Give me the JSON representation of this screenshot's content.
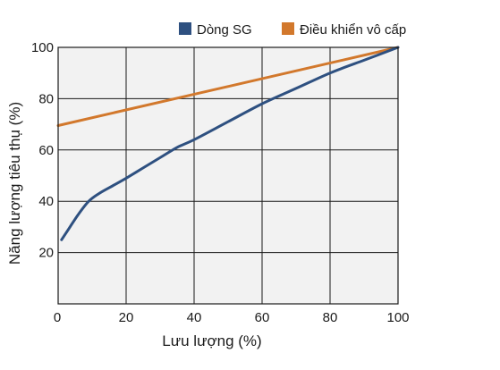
{
  "chart_data": {
    "type": "line",
    "xlabel": "Lưu lượng (%)",
    "ylabel": "Năng lượng tiêu thụ (%)",
    "xlim": [
      0,
      100
    ],
    "ylim": [
      0,
      100
    ],
    "x_ticks": [
      0,
      20,
      40,
      60,
      80,
      100
    ],
    "y_ticks": [
      20,
      40,
      60,
      80,
      100
    ],
    "grid": true,
    "legend_position": "top-right",
    "series": [
      {
        "name": "Dòng SG",
        "color": "#2e5080",
        "x": [
          1,
          3,
          6,
          9,
          12,
          16,
          20,
          25,
          30,
          35,
          40,
          50,
          60,
          70,
          80,
          90,
          100
        ],
        "y": [
          25,
          29,
          35,
          40,
          43,
          46,
          49,
          53,
          57,
          61,
          64,
          71,
          78,
          84,
          90,
          95,
          100
        ]
      },
      {
        "name": "Điều khiển vô cấp",
        "color": "#d2782c",
        "x": [
          0,
          100
        ],
        "y": [
          69.5,
          100
        ]
      }
    ]
  }
}
